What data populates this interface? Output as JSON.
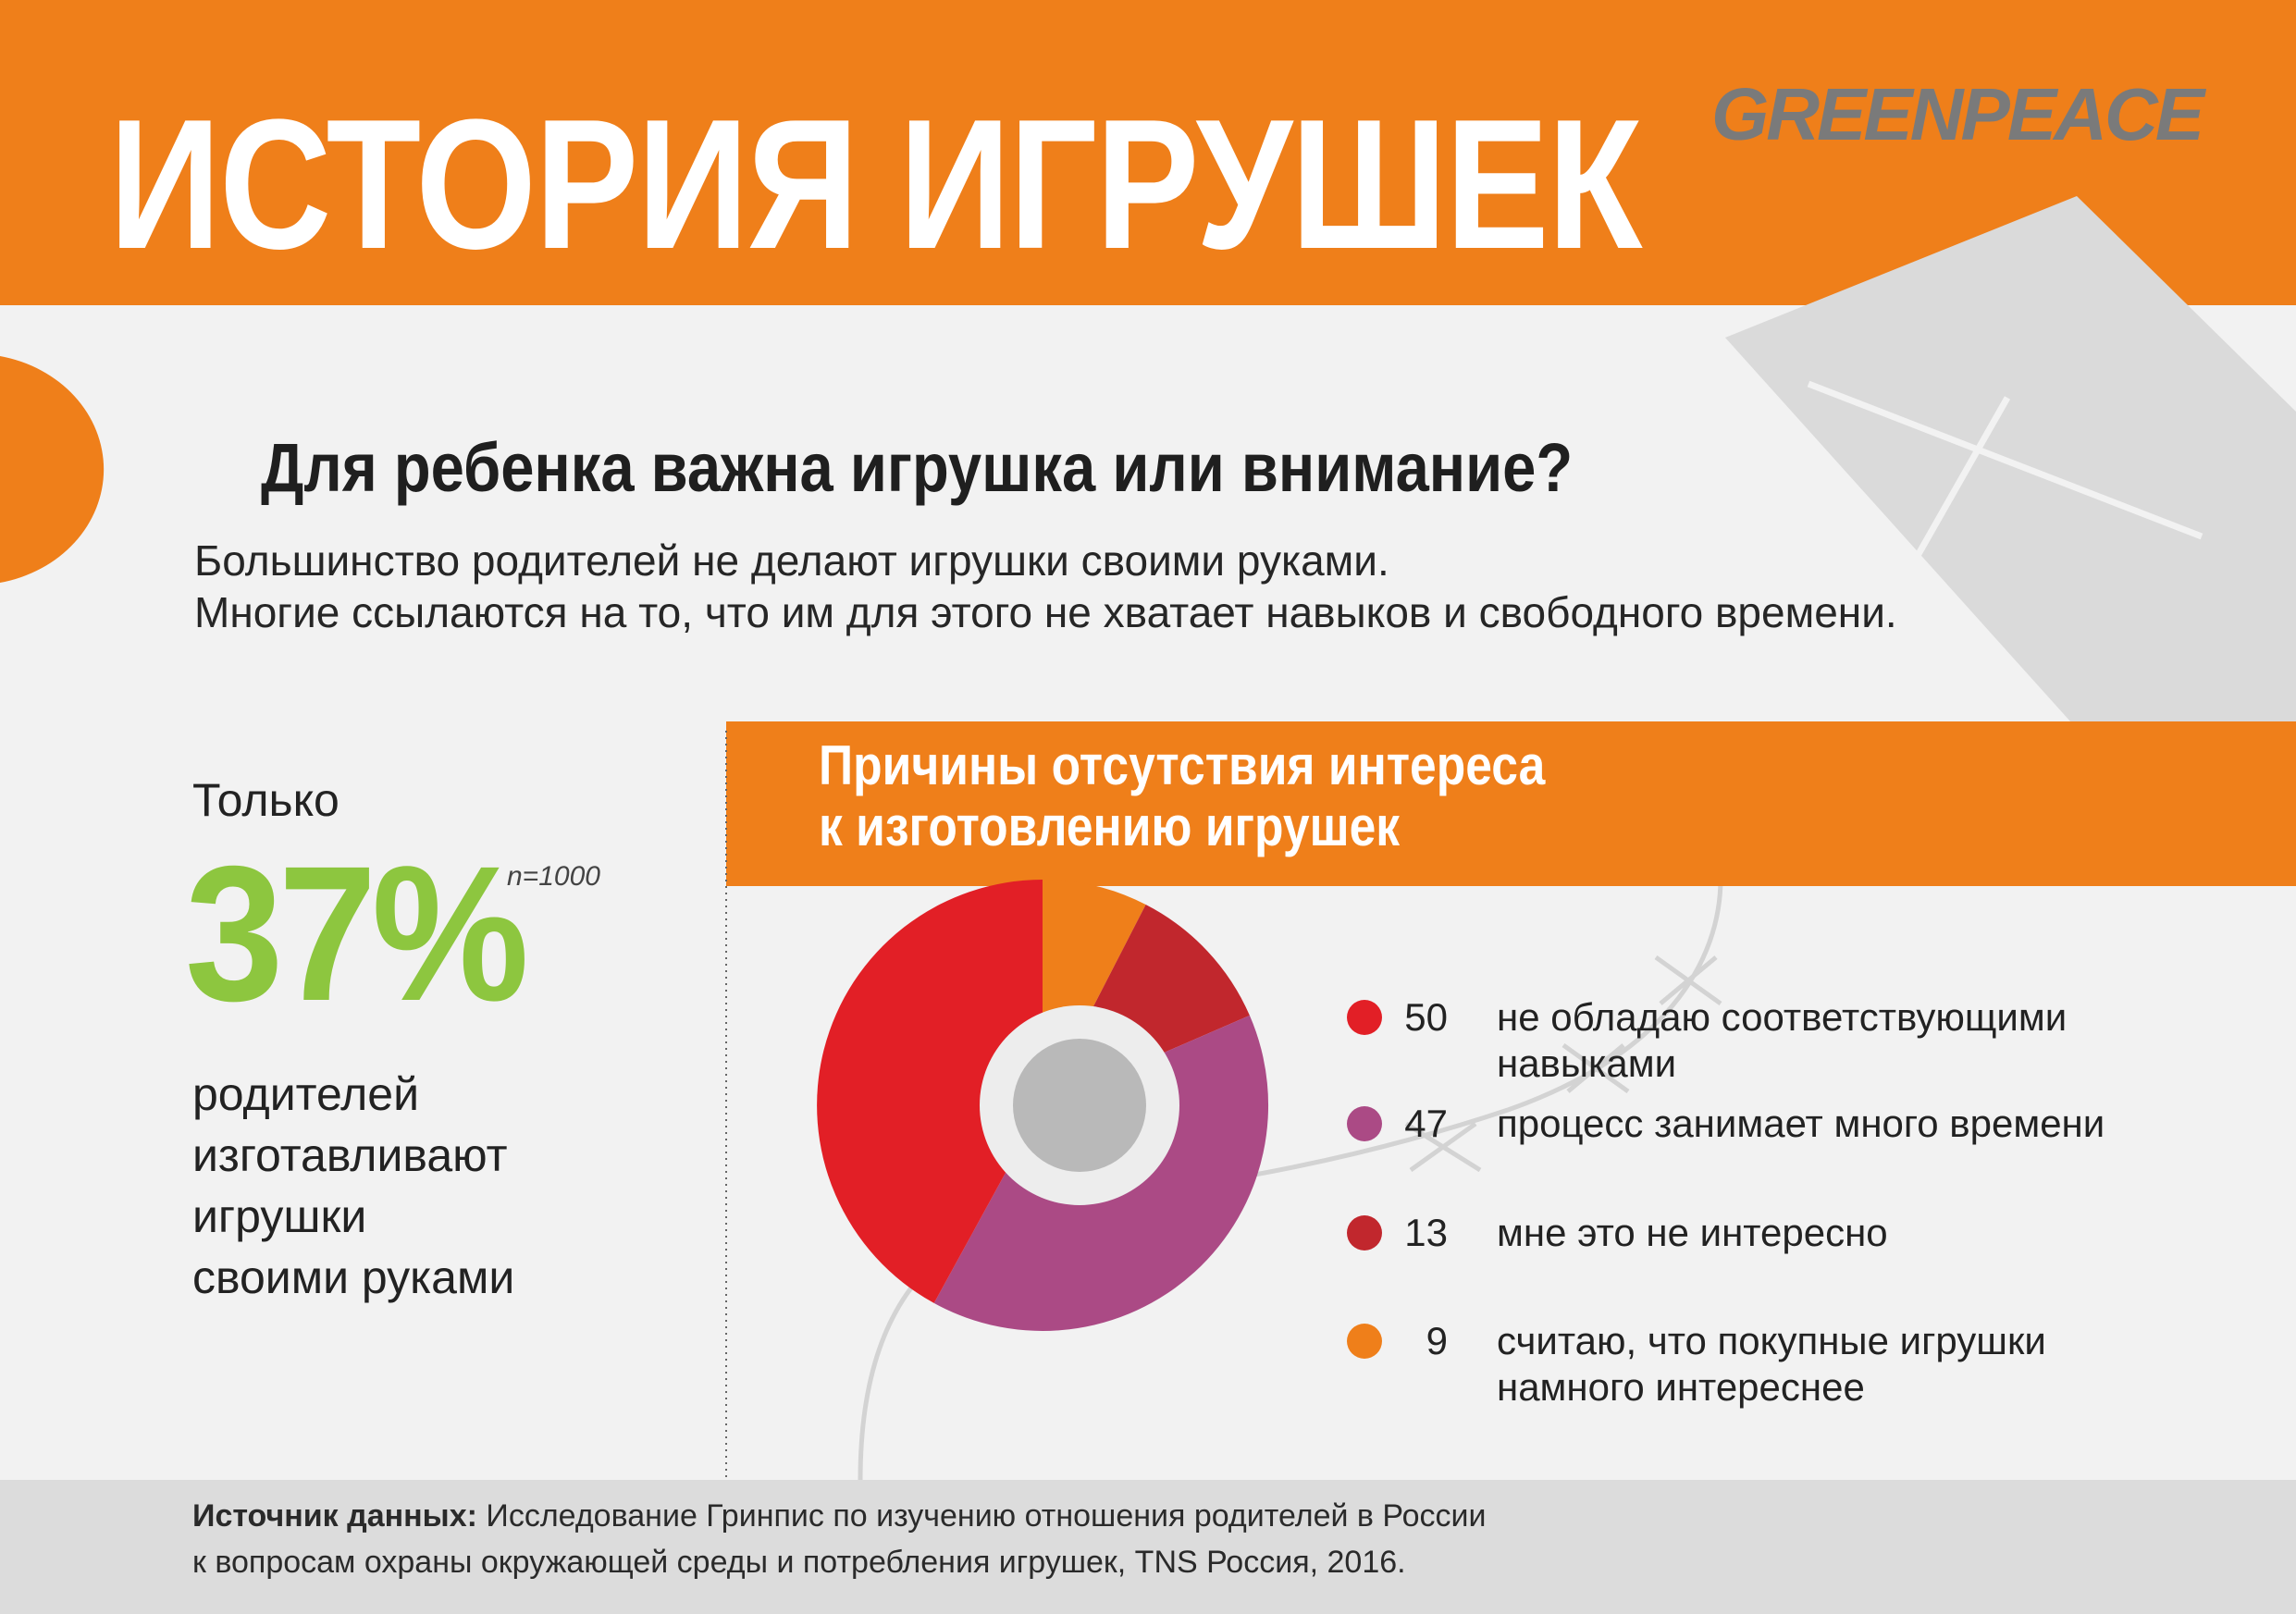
{
  "header": {
    "title": "ИСТОРИЯ ИГРУШЕК",
    "logo": "GREENPEACE"
  },
  "question": "Для ребенка важна игрушка или внимание?",
  "intro": [
    "Большинство родителей не делают игрушки своими руками.",
    "Многие ссылаются на то, что им для этого не хватает навыков и свободного времени."
  ],
  "stat": {
    "prefix": "Только",
    "value": "37%",
    "sample": "n=1000",
    "lines": [
      "родителей",
      "изготавливают",
      "игрушки",
      "своими руками"
    ]
  },
  "chart_data": {
    "type": "pie",
    "title_lines": [
      "Причины отсутствия интереса",
      "к изготовлению игрушек"
    ],
    "slices": [
      {
        "value": 50,
        "label_lines": [
          "не обладаю соответствующими",
          "навыками"
        ],
        "color": "#e21f26"
      },
      {
        "value": 47,
        "label_lines": [
          "процесс занимает много времени"
        ],
        "color": "#ab4a85"
      },
      {
        "value": 13,
        "label_lines": [
          "мне это не интересно"
        ],
        "color": "#c1272d"
      },
      {
        "value": 9,
        "label_lines": [
          "считаю, что покупные игрушки",
          "намного интереснее"
        ],
        "color": "#ef7f1a"
      }
    ],
    "drawing_order": [
      3,
      2,
      1,
      0
    ],
    "legend_position": "right"
  },
  "footer": {
    "source_label": "Источник данных:",
    "line1_rest": " Исследование Гринпис по изучению отношения родителей в России",
    "line2": "к вопросам охраны окружающей среды и потребления игрушек, TNS Россия, 2016."
  },
  "colors": {
    "orange": "#ef7f1a",
    "green": "#8dc63f",
    "background": "#f2f2f2",
    "kite": "#dadada",
    "footer": "#dcdcdc"
  }
}
